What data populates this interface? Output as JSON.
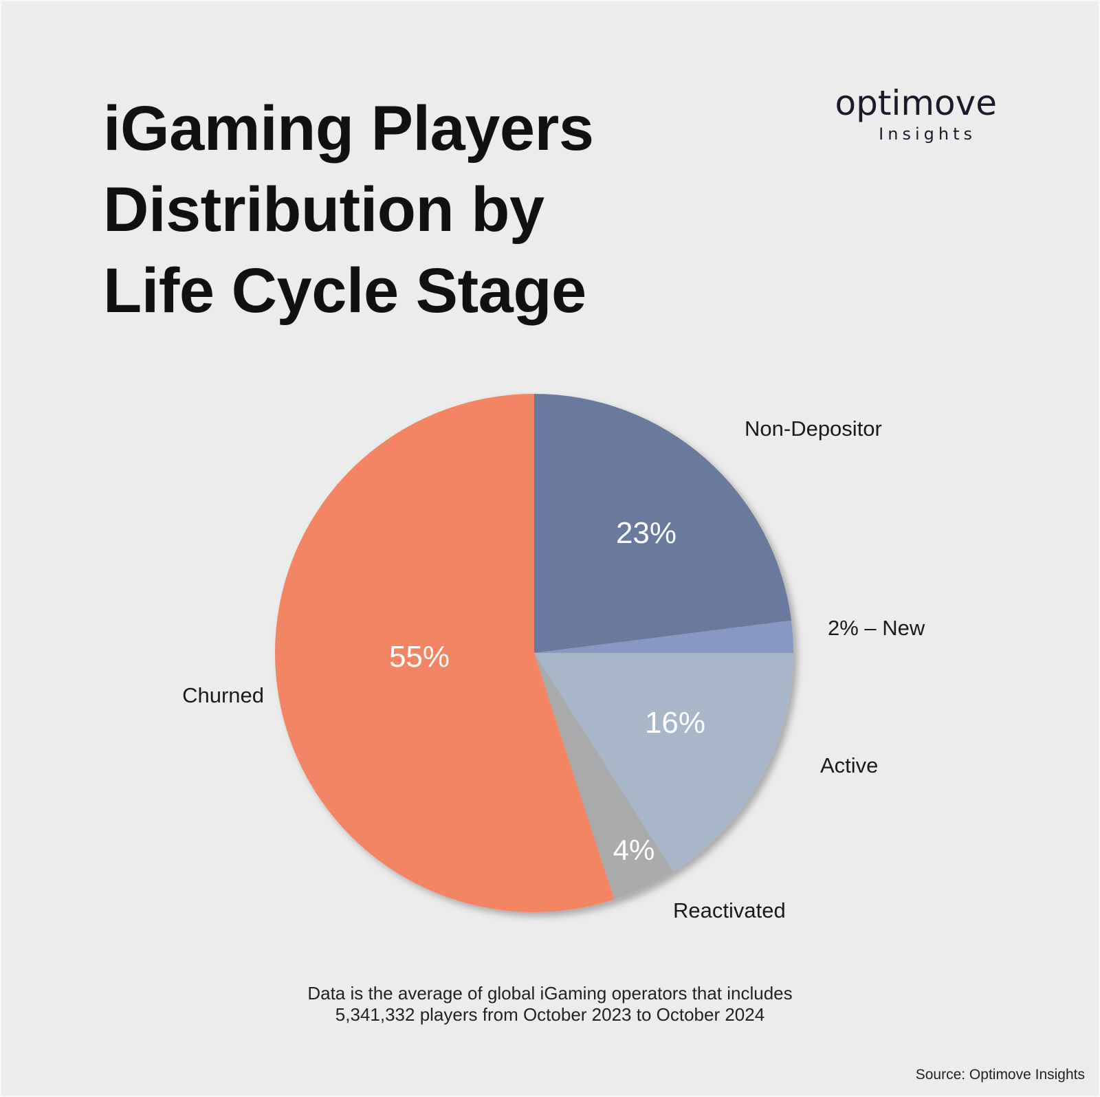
{
  "title_lines": [
    "iGaming Players",
    "Distribution by",
    "Life Cycle Stage"
  ],
  "logo": {
    "word": "optimove",
    "sub": "Insights"
  },
  "chart_data": {
    "type": "pie",
    "title": "iGaming Players Distribution by Life Cycle Stage",
    "start": "12 o'clock, clockwise",
    "slices": [
      {
        "label": "Non-Depositor",
        "value": 23,
        "value_label": "23%",
        "color": "#6b7a9e"
      },
      {
        "label": "New",
        "value": 2,
        "value_label": "2% – New",
        "color": "#8798c4"
      },
      {
        "label": "Active",
        "value": 16,
        "value_label": "16%",
        "color": "#a8b6ca"
      },
      {
        "label": "Reactivated",
        "value": 4,
        "value_label": "4%",
        "color": "#a9aaab"
      },
      {
        "label": "Churned",
        "value": 55,
        "value_label": "55%",
        "color": "#f38565"
      }
    ]
  },
  "note_lines": [
    "Data is the average of global iGaming operators that includes",
    "5,341,332 players from October 2023 to October 2024"
  ],
  "source": "Source: Optimove Insights"
}
